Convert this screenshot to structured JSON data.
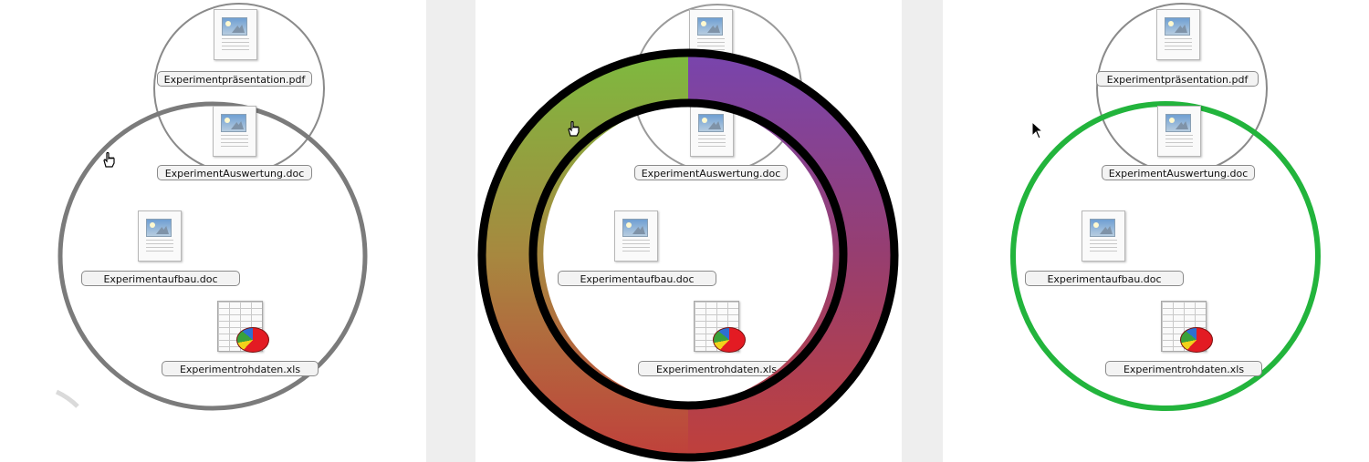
{
  "files": {
    "presentation": "Experimentpräsentation.pdf",
    "auswertung": "ExperimentAuswertung.doc",
    "aufbau": "Experimentaufbau.doc",
    "rohdaten": "Experimentrohdaten.xls"
  },
  "icons": {
    "doc": "document-icon",
    "xls": "spreadsheet-icon",
    "pointer": "arrow-cursor-icon",
    "hand": "hand-cursor-icon"
  },
  "colors": {
    "gray_ring": "#7b7b7b",
    "black_ring": "#000000",
    "green_ring": "#22b43c",
    "gradient_green": "#7dba3f",
    "gradient_purple": "#7845ad",
    "gradient_red": "#c0403b"
  }
}
